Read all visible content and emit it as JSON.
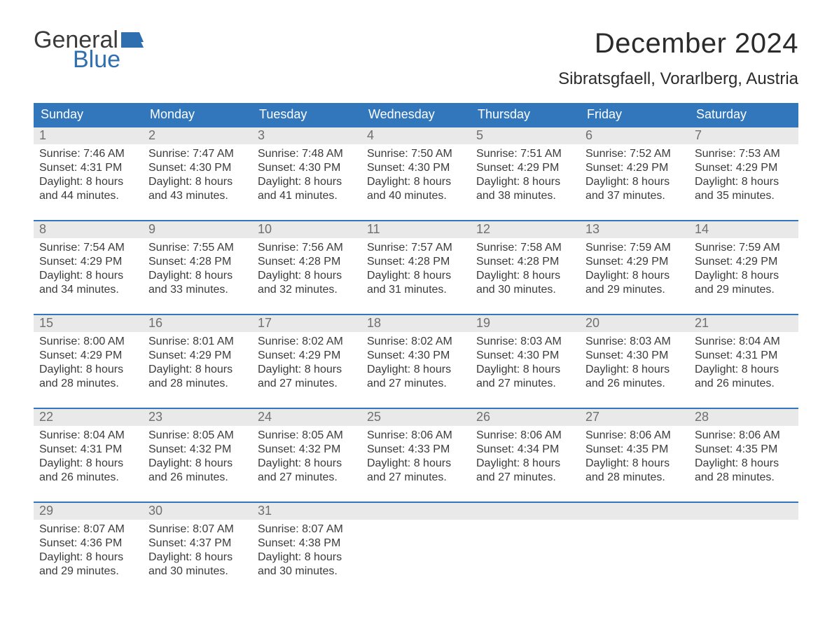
{
  "brand": {
    "word1": "General",
    "word2": "Blue",
    "flag_color": "#2f6fb0"
  },
  "title": "December 2024",
  "location": "Sibratsgfaell, Vorarlberg, Austria",
  "colors": {
    "header_bg": "#3277bb",
    "header_text": "#ffffff",
    "date_bar_bg": "#e9e9e9",
    "date_bar_text": "#6f6f6f",
    "body_text": "#3b3b3b",
    "week_border": "#3277bb"
  },
  "day_names": [
    "Sunday",
    "Monday",
    "Tuesday",
    "Wednesday",
    "Thursday",
    "Friday",
    "Saturday"
  ],
  "labels": {
    "sunrise": "Sunrise:",
    "sunset": "Sunset:",
    "daylight": "Daylight:"
  },
  "weeks": [
    [
      {
        "date": "1",
        "sunrise": "7:46 AM",
        "sunset": "4:31 PM",
        "daylight": "8 hours and 44 minutes."
      },
      {
        "date": "2",
        "sunrise": "7:47 AM",
        "sunset": "4:30 PM",
        "daylight": "8 hours and 43 minutes."
      },
      {
        "date": "3",
        "sunrise": "7:48 AM",
        "sunset": "4:30 PM",
        "daylight": "8 hours and 41 minutes."
      },
      {
        "date": "4",
        "sunrise": "7:50 AM",
        "sunset": "4:30 PM",
        "daylight": "8 hours and 40 minutes."
      },
      {
        "date": "5",
        "sunrise": "7:51 AM",
        "sunset": "4:29 PM",
        "daylight": "8 hours and 38 minutes."
      },
      {
        "date": "6",
        "sunrise": "7:52 AM",
        "sunset": "4:29 PM",
        "daylight": "8 hours and 37 minutes."
      },
      {
        "date": "7",
        "sunrise": "7:53 AM",
        "sunset": "4:29 PM",
        "daylight": "8 hours and 35 minutes."
      }
    ],
    [
      {
        "date": "8",
        "sunrise": "7:54 AM",
        "sunset": "4:29 PM",
        "daylight": "8 hours and 34 minutes."
      },
      {
        "date": "9",
        "sunrise": "7:55 AM",
        "sunset": "4:28 PM",
        "daylight": "8 hours and 33 minutes."
      },
      {
        "date": "10",
        "sunrise": "7:56 AM",
        "sunset": "4:28 PM",
        "daylight": "8 hours and 32 minutes."
      },
      {
        "date": "11",
        "sunrise": "7:57 AM",
        "sunset": "4:28 PM",
        "daylight": "8 hours and 31 minutes."
      },
      {
        "date": "12",
        "sunrise": "7:58 AM",
        "sunset": "4:28 PM",
        "daylight": "8 hours and 30 minutes."
      },
      {
        "date": "13",
        "sunrise": "7:59 AM",
        "sunset": "4:29 PM",
        "daylight": "8 hours and 29 minutes."
      },
      {
        "date": "14",
        "sunrise": "7:59 AM",
        "sunset": "4:29 PM",
        "daylight": "8 hours and 29 minutes."
      }
    ],
    [
      {
        "date": "15",
        "sunrise": "8:00 AM",
        "sunset": "4:29 PM",
        "daylight": "8 hours and 28 minutes."
      },
      {
        "date": "16",
        "sunrise": "8:01 AM",
        "sunset": "4:29 PM",
        "daylight": "8 hours and 28 minutes."
      },
      {
        "date": "17",
        "sunrise": "8:02 AM",
        "sunset": "4:29 PM",
        "daylight": "8 hours and 27 minutes."
      },
      {
        "date": "18",
        "sunrise": "8:02 AM",
        "sunset": "4:30 PM",
        "daylight": "8 hours and 27 minutes."
      },
      {
        "date": "19",
        "sunrise": "8:03 AM",
        "sunset": "4:30 PM",
        "daylight": "8 hours and 27 minutes."
      },
      {
        "date": "20",
        "sunrise": "8:03 AM",
        "sunset": "4:30 PM",
        "daylight": "8 hours and 26 minutes."
      },
      {
        "date": "21",
        "sunrise": "8:04 AM",
        "sunset": "4:31 PM",
        "daylight": "8 hours and 26 minutes."
      }
    ],
    [
      {
        "date": "22",
        "sunrise": "8:04 AM",
        "sunset": "4:31 PM",
        "daylight": "8 hours and 26 minutes."
      },
      {
        "date": "23",
        "sunrise": "8:05 AM",
        "sunset": "4:32 PM",
        "daylight": "8 hours and 26 minutes."
      },
      {
        "date": "24",
        "sunrise": "8:05 AM",
        "sunset": "4:32 PM",
        "daylight": "8 hours and 27 minutes."
      },
      {
        "date": "25",
        "sunrise": "8:06 AM",
        "sunset": "4:33 PM",
        "daylight": "8 hours and 27 minutes."
      },
      {
        "date": "26",
        "sunrise": "8:06 AM",
        "sunset": "4:34 PM",
        "daylight": "8 hours and 27 minutes."
      },
      {
        "date": "27",
        "sunrise": "8:06 AM",
        "sunset": "4:35 PM",
        "daylight": "8 hours and 28 minutes."
      },
      {
        "date": "28",
        "sunrise": "8:06 AM",
        "sunset": "4:35 PM",
        "daylight": "8 hours and 28 minutes."
      }
    ],
    [
      {
        "date": "29",
        "sunrise": "8:07 AM",
        "sunset": "4:36 PM",
        "daylight": "8 hours and 29 minutes."
      },
      {
        "date": "30",
        "sunrise": "8:07 AM",
        "sunset": "4:37 PM",
        "daylight": "8 hours and 30 minutes."
      },
      {
        "date": "31",
        "sunrise": "8:07 AM",
        "sunset": "4:38 PM",
        "daylight": "8 hours and 30 minutes."
      },
      null,
      null,
      null,
      null
    ]
  ]
}
